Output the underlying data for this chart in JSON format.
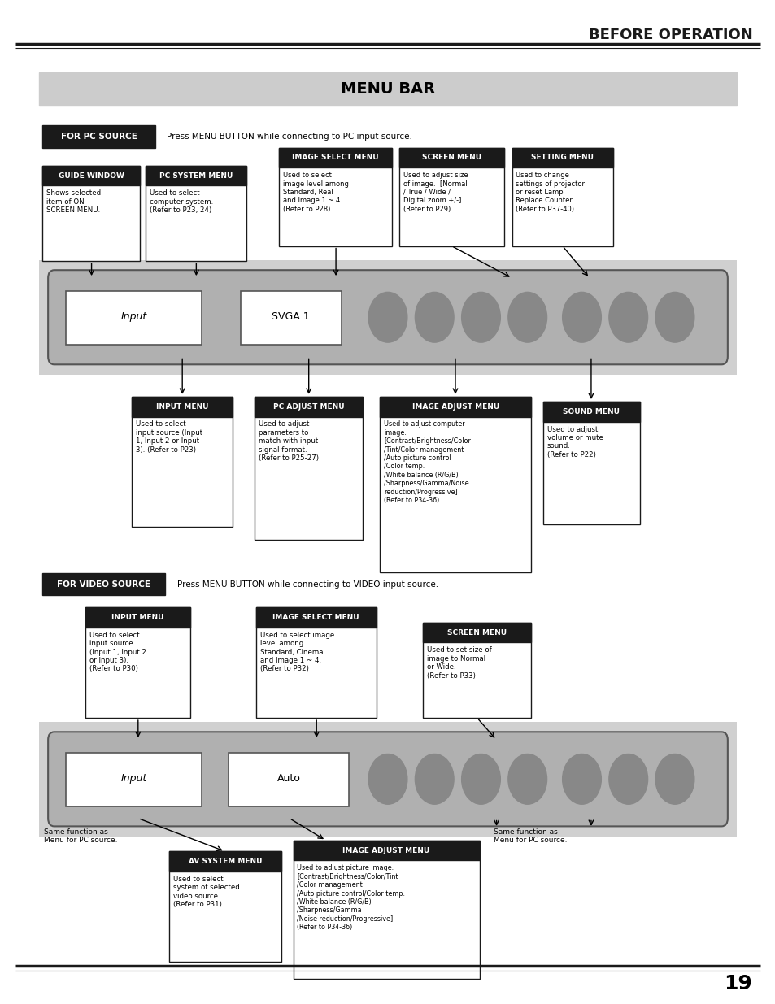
{
  "page_title": "BEFORE OPERATION",
  "section_title": "MENU BAR",
  "bg_color": "#ffffff",
  "header_line_color": "#1a1a1a",
  "title_bg": "#cccccc",
  "black_label_bg": "#1a1a1a",
  "black_label_fg": "#ffffff",
  "box_border": "#1a1a1a",
  "page_number": "19",
  "for_pc_source_label": "FOR PC SOURCE",
  "for_pc_source_text": "Press MENU BUTTON while connecting to PC input source.",
  "for_video_source_label": "FOR VIDEO SOURCE",
  "for_video_source_text": "Press MENU BUTTON while connecting to VIDEO input source.",
  "pc_menu_bar_text1": "Input",
  "pc_menu_bar_text2": "SVGA 1",
  "video_menu_bar_text1": "Input",
  "video_menu_bar_text2": "Auto",
  "video_side_text_left": "Same function as\nMenu for PC source.",
  "video_side_text_right": "Same function as\nMenu for PC source."
}
